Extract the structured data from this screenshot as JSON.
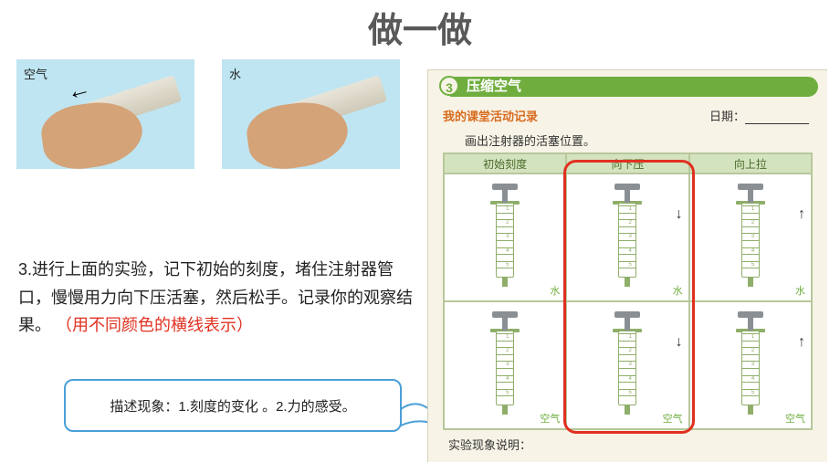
{
  "title": "做一做",
  "photo1_label": "空气",
  "photo2_label": "水",
  "instruction_prefix": "3.进行上面的实验，记下初始的刻度，堵住注射器管口，慢慢用力向下压活塞，然后松手。记录你的观察结果。",
  "instruction_red": "（用不同颜色的横线表示）",
  "callout_text": "描述现象：1.刻度的变化 。2.力的感受。",
  "worksheet": {
    "number": "3",
    "title": "压缩空气",
    "subhead_left": "我的课堂活动记录",
    "date_label": "日期：",
    "caption": "画出注射器的活塞位置。",
    "cols": [
      "初始刻度",
      "向下压",
      "向上拉"
    ],
    "row_labels": [
      "水",
      "空气"
    ],
    "arrows": {
      "down": "↓",
      "up": "↑"
    },
    "bottom_label": "实验现象说明：",
    "tick_count": 10,
    "colors": {
      "green": "#6fae3e",
      "worksheet_bg": "#f7f3e6",
      "head_bg": "#d4e3bf",
      "red": "#e03020",
      "orange": "#d86b1e"
    }
  }
}
